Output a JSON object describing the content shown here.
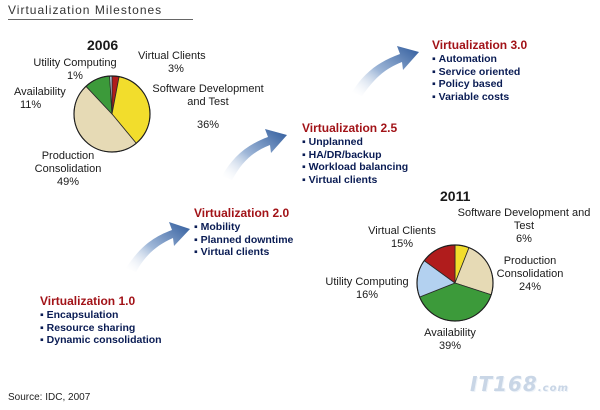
{
  "title": "Virtualization Milestones",
  "source": "Source: IDC, 2007",
  "watermark": {
    "main": "IT168",
    "suffix": ".com"
  },
  "stages": [
    {
      "title": "Virtualization 1.0",
      "items": [
        "Encapsulation",
        "Resource sharing",
        "Dynamic consolidation"
      ]
    },
    {
      "title": "Virtualization 2.0",
      "items": [
        "Mobility",
        "Planned downtime",
        "Virtual clients"
      ]
    },
    {
      "title": "Virtualization 2.5",
      "items": [
        "Unplanned",
        "HA/DR/backup",
        "Workload balancing",
        "Virtual clients"
      ]
    },
    {
      "title": "Virtualization 3.0",
      "items": [
        "Automation",
        "Service oriented",
        "Policy based",
        "Variable costs"
      ]
    }
  ],
  "colors": {
    "stage_title": "#a21318",
    "stage_items": "#0a1c54",
    "arrow": "#3f6aa8"
  },
  "chart_data": [
    {
      "type": "pie",
      "title": "2006",
      "categories": [
        "Virtual Clients",
        "Software Development and Test",
        "Production Consolidation",
        "Availability",
        "Utility Computing"
      ],
      "values": [
        3,
        36,
        49,
        11,
        1
      ],
      "value_labels": [
        "3%",
        "36%",
        "49%",
        "11%",
        "1%"
      ],
      "colors": [
        "#b01c1c",
        "#f2dd2c",
        "#e6dab5",
        "#3c9a3a",
        "#b9cbe6"
      ]
    },
    {
      "type": "pie",
      "title": "2011",
      "categories": [
        "Software Development and Test",
        "Production Consolidation",
        "Availability",
        "Utility Computing",
        "Virtual Clients"
      ],
      "values": [
        6,
        24,
        39,
        16,
        15
      ],
      "value_labels": [
        "6%",
        "24%",
        "39%",
        "16%",
        "15%"
      ],
      "colors": [
        "#f2dd2c",
        "#e6dab5",
        "#3c9a3a",
        "#b3d1f0",
        "#b01c1c"
      ]
    }
  ]
}
